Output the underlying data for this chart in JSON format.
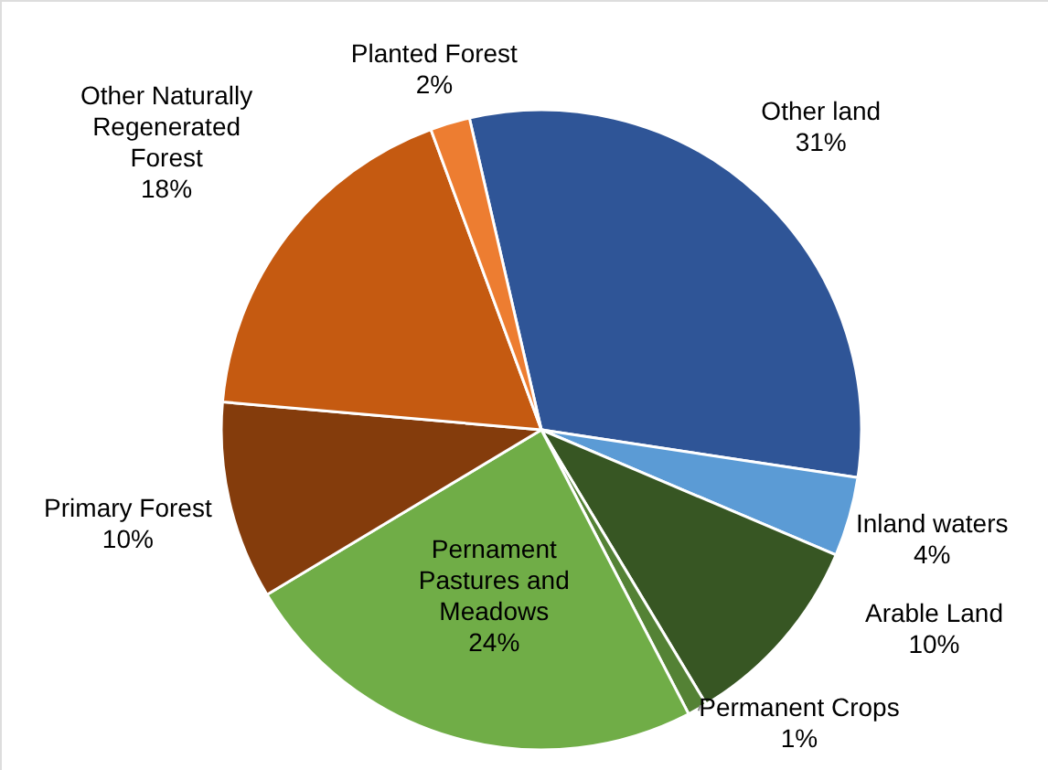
{
  "chart_data": {
    "type": "pie",
    "categories": [
      "Other land",
      "Inland waters",
      "Arable Land",
      "Permanent Crops",
      "Pernament Pastures and Meadows",
      "Primary Forest",
      "Other Naturally Regenerated Forest",
      "Planted Forest"
    ],
    "values": [
      31,
      4,
      10,
      1,
      24,
      10,
      18,
      2
    ],
    "value_labels": [
      "31%",
      "4%",
      "10%",
      "1%",
      "24%",
      "10%",
      "18%",
      "2%"
    ],
    "colors": [
      "#2f5597",
      "#5b9bd5",
      "#375623",
      "#548235",
      "#70ad47",
      "#843c0c",
      "#c55a11",
      "#ed7d31"
    ]
  }
}
